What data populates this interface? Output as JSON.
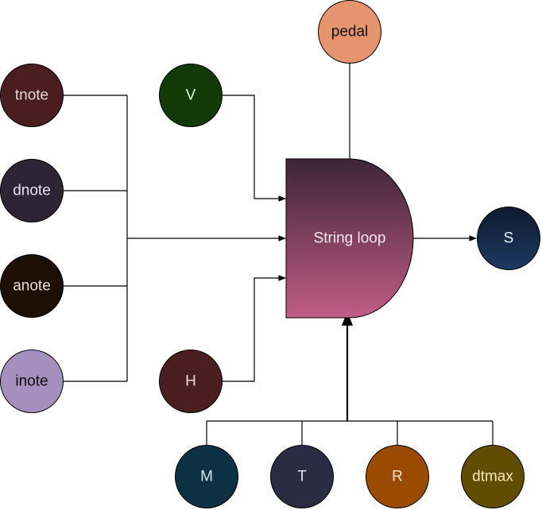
{
  "nodes": {
    "tnote": {
      "label": "tnote",
      "color": "#4a1e1e",
      "text_color": "#e6d6d6"
    },
    "dnote": {
      "label": "dnote",
      "color": "#2d2436",
      "text_color": "#e6e0ee"
    },
    "anote": {
      "label": "anote",
      "color": "#1e0f05",
      "text_color": "#e8ddd3"
    },
    "inote": {
      "label": "inote",
      "color": "#a58fbc",
      "text_color": "#0a0a0a"
    },
    "V": {
      "label": "V",
      "color": "#123a06",
      "text_color": "#e2efdb"
    },
    "H": {
      "label": "H",
      "color": "#4a1e1e",
      "text_color": "#eadada"
    },
    "pedal": {
      "label": "pedal",
      "color": "#e5946e",
      "text_color": "#111111"
    },
    "S": {
      "label": "S",
      "color": "#1d3a62",
      "text_color": "#e6edf6"
    },
    "M": {
      "label": "M",
      "color": "#0c3143",
      "text_color": "#d7e7ef"
    },
    "T": {
      "label": "T",
      "color": "#2c2b44",
      "text_color": "#e4e4f0"
    },
    "R": {
      "label": "R",
      "color": "#9b4b00",
      "text_color": "#f5e3cf"
    },
    "dtmax": {
      "label": "dtmax",
      "color": "#614d00",
      "text_color": "#f2e6b8"
    }
  },
  "core": {
    "label": "String loop",
    "gradient_top": "#3d2538",
    "gradient_bottom": "#c15d87"
  }
}
